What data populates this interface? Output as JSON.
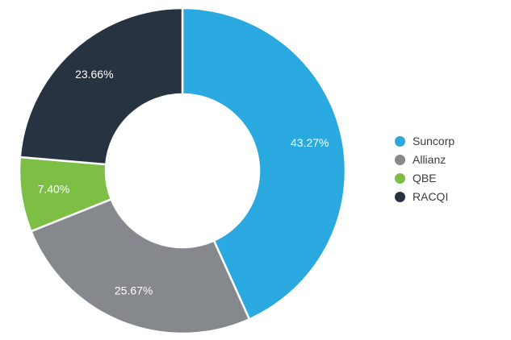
{
  "chart_data": {
    "type": "pie",
    "style": "donut",
    "categories": [
      "Suncorp",
      "Allianz",
      "QBE",
      "RACQI"
    ],
    "values": [
      43.27,
      25.67,
      7.4,
      23.66
    ],
    "slice_labels": [
      "43.27%",
      "25.67%",
      "7.40%",
      "23.66%"
    ],
    "colors": [
      "#29A9E0",
      "#85888C",
      "#7CBF44",
      "#273340"
    ],
    "start_angle_deg": 0,
    "direction": "clockwise",
    "inner_radius_ratio": 0.47,
    "slice_border_color": "#FFFFFF",
    "slice_label_color": "#FFFFFF",
    "legend_position": "right",
    "legend_text_color": "#3C3C3C",
    "title": ""
  }
}
